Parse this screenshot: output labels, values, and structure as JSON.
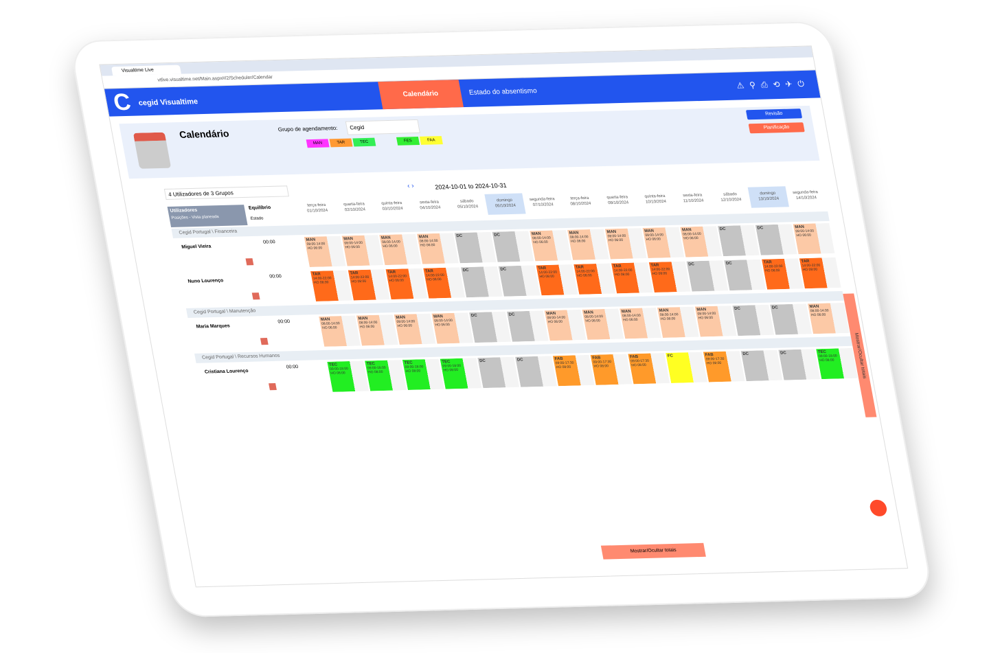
{
  "browser": {
    "tab": "Visualtime Live",
    "url": "vtlive.visualtime.net/Main.aspx#/2/Scheduler/Calendar"
  },
  "header": {
    "brand": "cegid Visualtime",
    "nav": [
      "Calendário",
      "Estado do absentismo"
    ]
  },
  "toolbar": {
    "title": "Calendário",
    "group_label": "Grupo de agendamento:",
    "group_value": "Cegid",
    "legend": [
      {
        "code": "MAN",
        "color": "#ff33ff"
      },
      {
        "code": "TAR",
        "color": "#ff9933"
      },
      {
        "code": "TEC",
        "color": "#33ee55"
      },
      {
        "code": "FES",
        "color": "#33ee33"
      },
      {
        "code": "FAA",
        "color": "#ffff33"
      }
    ],
    "buttons": [
      "Revisão",
      "Planificação"
    ]
  },
  "calendar": {
    "summary": "4 Utilizadores de 3 Grupos",
    "range": "2024-10-01 to 2024-10-31",
    "columns": {
      "users": "Utilizadores",
      "positions": "Posições - Vista planeada",
      "balance": "Equilíbrio",
      "state": "Estado"
    },
    "days": [
      {
        "name": "terça-feira",
        "date": "01/10/2024"
      },
      {
        "name": "quarta-feira",
        "date": "02/10/2024"
      },
      {
        "name": "quinta-feira",
        "date": "03/10/2024"
      },
      {
        "name": "sexta-feira",
        "date": "04/10/2024"
      },
      {
        "name": "sábado",
        "date": "05/10/2024"
      },
      {
        "name": "domingo",
        "date": "06/10/2024",
        "weekend": true
      },
      {
        "name": "segunda-feira",
        "date": "07/10/2024"
      },
      {
        "name": "terça-feira",
        "date": "08/10/2024"
      },
      {
        "name": "quarta-feira",
        "date": "09/10/2024"
      },
      {
        "name": "quinta-feira",
        "date": "10/10/2024"
      },
      {
        "name": "sexta-feira",
        "date": "11/10/2024"
      },
      {
        "name": "sábado",
        "date": "12/10/2024"
      },
      {
        "name": "domingo",
        "date": "13/10/2024",
        "weekend": true
      },
      {
        "name": "segunda-feira",
        "date": "14/10/2024"
      }
    ],
    "shift_colors": {
      "MAN": "#fcc9a6",
      "TAR": "#ff6a1a",
      "TEC": "#22ee22",
      "FAB": "#ff9a2a",
      "FC": "#ffff22",
      "DC": "#c4c4c4"
    },
    "groups": [
      {
        "name": "Cegid Portugal \\ Financeira",
        "users": [
          {
            "name": "Miguel Vieira",
            "balance": "00:00",
            "shifts": [
              {
                "code": "MAN",
                "time": "08:00-14:00",
                "hours": "HO 06:00"
              },
              {
                "code": "MAN",
                "time": "08:00-14:00",
                "hours": "HO 06:00"
              },
              {
                "code": "MAN",
                "time": "08:00-14:00",
                "hours": "HO 06:00"
              },
              {
                "code": "MAN",
                "time": "08:00-14:00",
                "hours": "HO 06:00"
              },
              {
                "code": "DC"
              },
              {
                "code": "DC"
              },
              {
                "code": "MAN",
                "time": "08:00-14:00",
                "hours": "HO 06:00"
              },
              {
                "code": "MAN",
                "time": "08:00-14:00",
                "hours": "HO 06:00"
              },
              {
                "code": "MAN",
                "time": "08:00-14:00",
                "hours": "HO 06:00"
              },
              {
                "code": "MAN",
                "time": "08:00-14:00",
                "hours": "HO 06:00"
              },
              {
                "code": "MAN",
                "time": "08:00-14:00",
                "hours": "HO 06:00"
              },
              {
                "code": "DC"
              },
              {
                "code": "DC"
              },
              {
                "code": "MAN",
                "time": "08:00-14:00",
                "hours": "HO 06:00"
              }
            ]
          },
          {
            "name": "Nuno Lourenço",
            "balance": "00:00",
            "shifts": [
              {
                "code": "TAR",
                "time": "14:00-22:00",
                "hours": "HO 08:00"
              },
              {
                "code": "TAR",
                "time": "14:00-22:00",
                "hours": "HO 08:00"
              },
              {
                "code": "TAR",
                "time": "14:00-22:00",
                "hours": "HO 08:00"
              },
              {
                "code": "TAR",
                "time": "14:00-22:00",
                "hours": "HO 08:00"
              },
              {
                "code": "DC"
              },
              {
                "code": "DC"
              },
              {
                "code": "TAR",
                "time": "14:00-22:00",
                "hours": "HO 08:00"
              },
              {
                "code": "TAR",
                "time": "14:00-22:00",
                "hours": "HO 08:00"
              },
              {
                "code": "TAR",
                "time": "14:00-22:00",
                "hours": "HO 08:00"
              },
              {
                "code": "TAR",
                "time": "14:00-22:00",
                "hours": "HO 08:00"
              },
              {
                "code": "DC"
              },
              {
                "code": "DC"
              },
              {
                "code": "TAR",
                "time": "14:00-22:00",
                "hours": "HO 08:00"
              },
              {
                "code": "TAR",
                "time": "14:00-22:00",
                "hours": "HO 08:00"
              }
            ]
          }
        ]
      },
      {
        "name": "Cegid Portugal \\ Manutenção",
        "users": [
          {
            "name": "Maria Marques",
            "balance": "00:00",
            "shifts": [
              {
                "code": "MAN",
                "time": "08:00-14:00",
                "hours": "HO 06:00"
              },
              {
                "code": "MAN",
                "time": "08:00-14:00",
                "hours": "HO 06:00"
              },
              {
                "code": "MAN",
                "time": "08:00-14:00",
                "hours": "HO 06:00"
              },
              {
                "code": "MAN",
                "time": "08:00-14:00",
                "hours": "HO 06:00"
              },
              {
                "code": "DC"
              },
              {
                "code": "DC"
              },
              {
                "code": "MAN",
                "time": "08:00-14:00",
                "hours": "HO 06:00"
              },
              {
                "code": "MAN",
                "time": "08:00-14:00",
                "hours": "HO 06:00"
              },
              {
                "code": "MAN",
                "time": "08:00-14:00",
                "hours": "HO 06:00"
              },
              {
                "code": "MAN",
                "time": "08:00-14:00",
                "hours": "HO 06:00"
              },
              {
                "code": "MAN",
                "time": "08:00-14:00",
                "hours": "HO 06:00"
              },
              {
                "code": "DC"
              },
              {
                "code": "DC"
              },
              {
                "code": "MAN",
                "time": "08:00-14:00",
                "hours": "HO 06:00"
              }
            ]
          }
        ]
      },
      {
        "name": "Cegid Portugal \\ Recursos Humanos",
        "users": [
          {
            "name": "Cristiana Lourenço",
            "balance": "00:00",
            "shifts": [
              {
                "code": "TEC",
                "time": "09:00-18:00",
                "hours": "HO 08:00"
              },
              {
                "code": "TEC",
                "time": "09:00-18:00",
                "hours": "HO 08:00"
              },
              {
                "code": "TEC",
                "time": "09:00-18:00",
                "hours": "HO 08:00"
              },
              {
                "code": "TEC",
                "time": "09:00-18:00",
                "hours": "HO 08:00"
              },
              {
                "code": "DC"
              },
              {
                "code": "DC"
              },
              {
                "code": "FAB",
                "time": "09:00-17:30",
                "hours": "HO 08:00"
              },
              {
                "code": "FAB",
                "time": "09:00-17:30",
                "hours": "HO 08:00"
              },
              {
                "code": "FAB",
                "time": "09:00-17:30",
                "hours": "HO 08:00"
              },
              {
                "code": "FC"
              },
              {
                "code": "FAB",
                "time": "09:00-17:30",
                "hours": "HO 08:00"
              },
              {
                "code": "DC"
              },
              {
                "code": "DC"
              },
              {
                "code": "TEC",
                "time": "09:00-18:00",
                "hours": "HO 08:00"
              }
            ]
          }
        ]
      }
    ]
  },
  "totals_toggle": "Mostrar/Ocultar totais"
}
